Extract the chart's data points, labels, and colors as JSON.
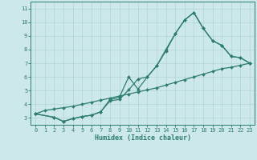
{
  "xlabel": "Humidex (Indice chaleur)",
  "bg_color": "#cce8e8",
  "grid_color": "#b0d4d4",
  "line_color": "#2e7d70",
  "xlim": [
    -0.5,
    23.5
  ],
  "ylim": [
    2.5,
    11.5
  ],
  "xticks": [
    0,
    1,
    2,
    3,
    4,
    5,
    6,
    7,
    8,
    9,
    10,
    11,
    12,
    13,
    14,
    15,
    16,
    17,
    18,
    19,
    20,
    21,
    22,
    23
  ],
  "yticks": [
    3,
    4,
    5,
    6,
    7,
    8,
    9,
    10,
    11
  ],
  "line1_x": [
    0,
    1,
    2,
    3,
    4,
    5,
    6,
    7,
    8,
    9,
    10,
    11,
    12,
    13,
    14,
    15,
    16,
    17,
    18,
    19,
    20,
    21,
    22,
    23
  ],
  "line1_y": [
    3.3,
    3.55,
    3.65,
    3.75,
    3.85,
    4.0,
    4.15,
    4.3,
    4.45,
    4.6,
    4.75,
    4.9,
    5.05,
    5.2,
    5.4,
    5.6,
    5.8,
    6.0,
    6.2,
    6.4,
    6.6,
    6.7,
    6.85,
    7.0
  ],
  "line2_x": [
    0,
    2,
    3,
    4,
    5,
    6,
    7,
    8,
    9,
    10,
    11,
    12,
    13,
    14,
    15,
    16,
    17,
    18,
    19,
    20,
    21,
    22,
    23
  ],
  "line2_y": [
    3.3,
    3.05,
    2.75,
    2.95,
    3.1,
    3.2,
    3.45,
    4.25,
    4.35,
    5.05,
    5.85,
    6.0,
    6.8,
    7.9,
    9.15,
    10.15,
    10.7,
    9.55,
    8.65,
    8.3,
    7.5,
    7.4,
    7.0
  ],
  "line3_x": [
    0,
    2,
    3,
    4,
    5,
    6,
    7,
    8,
    9,
    10,
    11,
    12,
    13,
    14,
    15,
    16,
    17,
    18,
    19,
    20,
    21,
    22,
    23
  ],
  "line3_y": [
    3.3,
    3.05,
    2.75,
    2.95,
    3.1,
    3.2,
    3.45,
    4.35,
    4.5,
    6.0,
    5.1,
    6.0,
    6.8,
    8.0,
    9.15,
    10.15,
    10.7,
    9.55,
    8.65,
    8.3,
    7.5,
    7.4,
    7.0
  ]
}
